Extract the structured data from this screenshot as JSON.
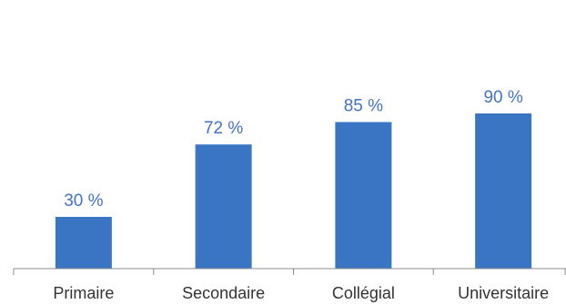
{
  "chart_data": {
    "type": "bar",
    "title": "",
    "xlabel": "",
    "ylabel": "",
    "categories": [
      "Primaire",
      "Secondaire",
      "Collégial",
      "Universitaire"
    ],
    "values": [
      30,
      72,
      85,
      90
    ],
    "data_labels": [
      "30 %",
      "72 %",
      "85 %",
      "90 %"
    ],
    "ylim": [
      0,
      100
    ],
    "grid": false,
    "legend": "none",
    "bar_color": "#3A75C4",
    "label_color": "#4472C4",
    "axis_color": "#8C8C8C"
  }
}
